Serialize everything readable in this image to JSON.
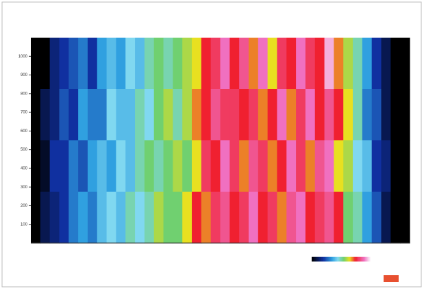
{
  "chart_data": {
    "type": "heatmap",
    "ylim": [
      0,
      1100
    ],
    "yticks": [
      100,
      200,
      300,
      400,
      500,
      600,
      700,
      800,
      900,
      1000
    ],
    "values": [
      [
        0,
        0,
        1.5,
        2,
        2.5,
        3,
        2,
        3.5,
        4,
        3.5,
        4.5,
        4,
        5,
        5.5,
        5,
        5.5,
        6,
        6.5,
        7.5,
        8,
        9,
        7.5,
        8.5,
        7,
        9,
        6.5,
        8,
        7.5,
        9,
        8,
        7.5,
        9.5,
        7,
        6,
        5,
        3.5,
        2,
        1,
        0,
        0
      ],
      [
        0,
        1,
        1.5,
        2.5,
        2,
        3.5,
        3,
        3,
        4.5,
        4,
        4,
        5,
        4.5,
        5.5,
        6,
        5,
        6,
        7,
        7.5,
        8.5,
        8,
        8,
        7.5,
        8,
        7,
        7.5,
        9,
        7,
        8,
        9,
        7.5,
        8.5,
        7.5,
        6.5,
        5,
        3,
        2.5,
        1,
        0,
        0
      ],
      [
        0,
        0.5,
        2,
        2,
        3,
        2.5,
        3.5,
        4,
        3.5,
        4.5,
        4,
        5,
        5.5,
        5,
        5.5,
        6,
        5.5,
        6.5,
        8,
        7.5,
        9,
        8,
        7,
        8.5,
        8,
        7,
        7.5,
        9,
        8,
        7,
        8.5,
        9,
        6.5,
        6,
        4.5,
        4,
        2,
        1.5,
        0,
        0
      ],
      [
        0,
        1,
        1.5,
        2,
        3,
        3.5,
        3,
        4,
        4.5,
        4,
        5,
        4.5,
        5,
        6,
        5.5,
        5.5,
        6.5,
        7.5,
        7,
        8,
        8.5,
        7.5,
        8,
        9,
        7.5,
        8,
        7,
        8.5,
        9,
        7.5,
        8,
        8.5,
        7.5,
        5.5,
        5,
        3.5,
        2.5,
        1,
        0,
        0
      ]
    ],
    "colorscale": [
      [
        0,
        "#000000"
      ],
      [
        2,
        "#1030a0"
      ],
      [
        3.5,
        "#30a0e0"
      ],
      [
        4.5,
        "#80d8f0"
      ],
      [
        5.5,
        "#70d070"
      ],
      [
        6.5,
        "#e8e020"
      ],
      [
        7.5,
        "#f02030"
      ],
      [
        9,
        "#f070c0"
      ],
      [
        10,
        "#f8f0f8"
      ]
    ]
  }
}
